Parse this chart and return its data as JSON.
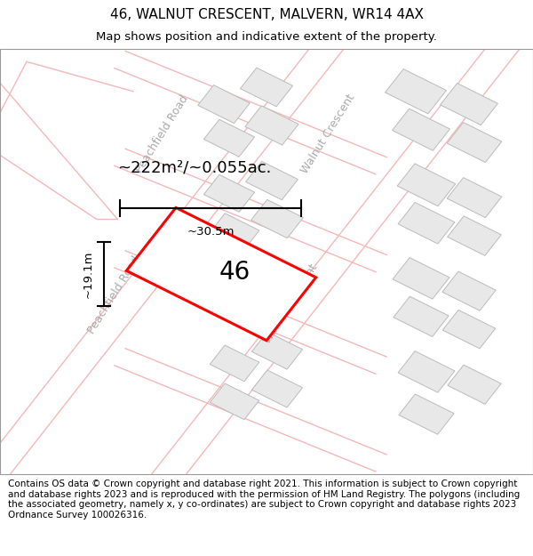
{
  "title": "46, WALNUT CRESCENT, MALVERN, WR14 4AX",
  "subtitle": "Map shows position and indicative extent of the property.",
  "footer": "Contains OS data © Crown copyright and database right 2021. This information is subject to Crown copyright and database rights 2023 and is reproduced with the permission of HM Land Registry. The polygons (including the associated geometry, namely x, y co-ordinates) are subject to Crown copyright and database rights 2023 Ordnance Survey 100026316.",
  "area_label": "~222m²/~0.055ac.",
  "width_label": "~30.5m",
  "height_label": "~19.1m",
  "plot_number": "46",
  "map_bg": "#ffffff",
  "road_line_color": "#f5b8b8",
  "road_centerline_color": "#cccccc",
  "building_color": "#e8e8e8",
  "building_edge": "#bbbbbb",
  "plot_color": "#ffffff",
  "plot_edge": "#ff0000",
  "plot_edge_width": 2.2,
  "title_fontsize": 11,
  "subtitle_fontsize": 9.5,
  "footer_fontsize": 7.5,
  "area_label_fontsize": 13,
  "plot_label_fontsize": 20,
  "dim_label_fontsize": 9.5,
  "road_label_color": "#aaaaaa",
  "road_label_fontsize": 9
}
